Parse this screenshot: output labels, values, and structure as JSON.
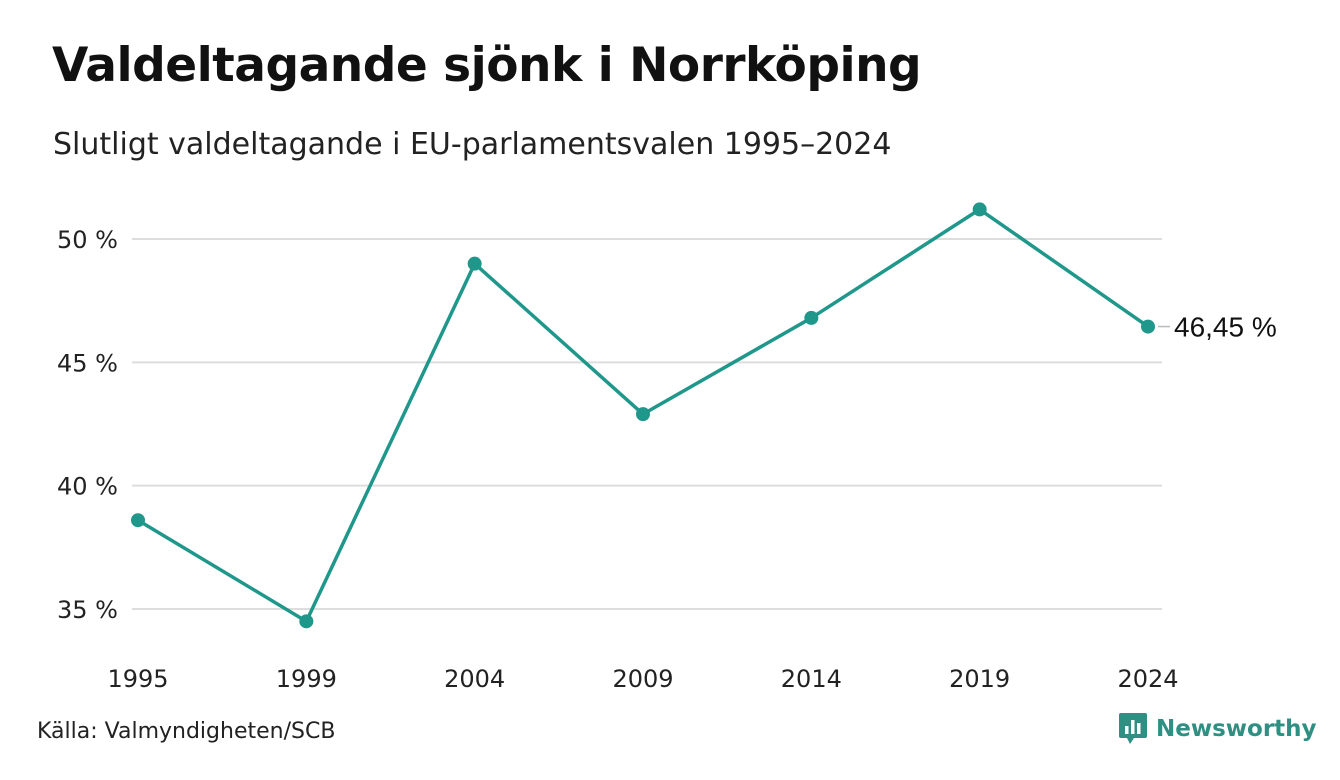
{
  "title": "Valdeltagande sjönk i Norrköping",
  "subtitle": "Slutligt valdeltagande i EU-parlamentsvalen 1995–2024",
  "source": "Källa: Valmyndigheten/SCB",
  "brand": {
    "name": "Newsworthy",
    "icon": "newsworthy-logo-icon"
  },
  "colors": {
    "line": "#1f978a",
    "grid": "#dddddd",
    "brand": "#2f8f82"
  },
  "chart_data": {
    "type": "line",
    "title": "Valdeltagande sjönk i Norrköping",
    "subtitle": "Slutligt valdeltagande i EU-parlamentsvalen 1995–2024",
    "xlabel": "",
    "ylabel": "",
    "x": [
      1995,
      1999,
      2004,
      2009,
      2014,
      2019,
      2024
    ],
    "x_tick_labels": [
      "1995",
      "1999",
      "2004",
      "2009",
      "2014",
      "2019",
      "2024"
    ],
    "series": [
      {
        "values": [
          38.6,
          34.5,
          49.0,
          42.9,
          46.8,
          51.2,
          46.45
        ]
      }
    ],
    "ylim": [
      33.5,
      52
    ],
    "y_ticks": [
      35,
      40,
      45,
      50
    ],
    "y_tick_labels": [
      "35 %",
      "40 %",
      "45 %",
      "50 %"
    ],
    "end_label": "46,45 %",
    "grid": true,
    "legend": "none"
  }
}
